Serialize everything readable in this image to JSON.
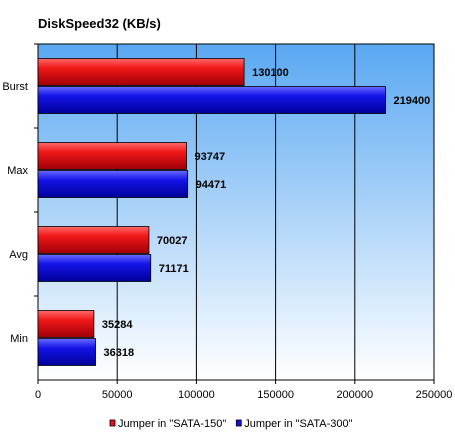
{
  "chart_data": {
    "type": "bar",
    "orientation": "horizontal",
    "title": "DiskSpeed32  (KB/s)",
    "categories": [
      "Burst",
      "Max",
      "Avg",
      "Min"
    ],
    "series": [
      {
        "name": "Jumper in \"SATA-150\"",
        "color": "#e8101a",
        "values": [
          130100,
          93747,
          70027,
          35284
        ]
      },
      {
        "name": "Jumper in \"SATA-300\"",
        "color": "#1010e0",
        "values": [
          219400,
          94471,
          71171,
          36318
        ]
      }
    ],
    "xlim": [
      0,
      250000
    ],
    "x_ticks": [
      0,
      50000,
      100000,
      150000,
      200000,
      250000
    ],
    "grid": true,
    "legend_position": "bottom",
    "plot_background": "gradient-blue-to-white"
  }
}
